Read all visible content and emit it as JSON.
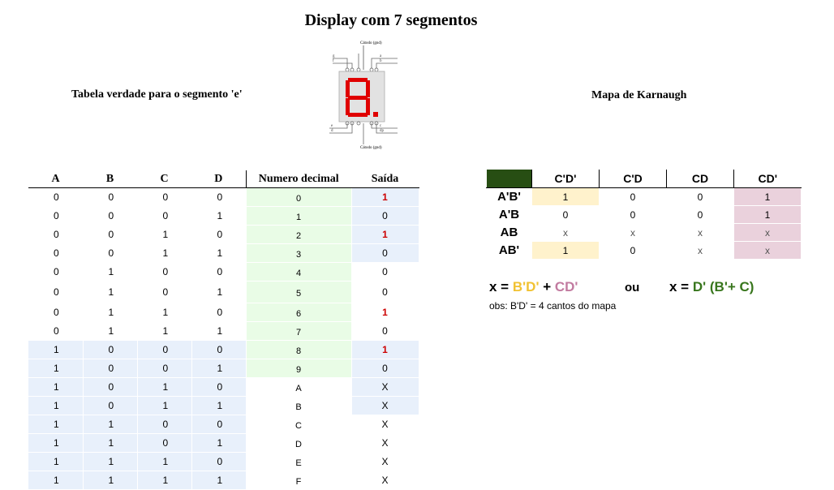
{
  "title": "Display com 7 segmentos",
  "truth_table_label": "Tabela verdade para o segmento 'e'",
  "karnaugh_label": "Mapa de Karnaugh",
  "diagram": {
    "common_top": "Cátodo (gnd)",
    "common_bottom": "Cátodo (gnd)",
    "segments": [
      "a",
      "b",
      "c",
      "d",
      "e",
      "f",
      "g"
    ],
    "dp": "dp",
    "accent_color": "#e00000"
  },
  "truth_table": {
    "headers": [
      "A",
      "B",
      "C",
      "D",
      "Numero decimal",
      "Saída"
    ],
    "rows": [
      {
        "a": "0",
        "b": "0",
        "c": "0",
        "d": "0",
        "num": "0",
        "out": "1"
      },
      {
        "a": "0",
        "b": "0",
        "c": "0",
        "d": "1",
        "num": "1",
        "out": "0"
      },
      {
        "a": "0",
        "b": "0",
        "c": "1",
        "d": "0",
        "num": "2",
        "out": "1"
      },
      {
        "a": "0",
        "b": "0",
        "c": "1",
        "d": "1",
        "num": "3",
        "out": "0"
      },
      {
        "a": "0",
        "b": "1",
        "c": "0",
        "d": "0",
        "num": "4",
        "out": "0"
      },
      {
        "a": "0",
        "b": "1",
        "c": "0",
        "d": "1",
        "num": "5",
        "out": "0"
      },
      {
        "a": "0",
        "b": "1",
        "c": "1",
        "d": "0",
        "num": "6",
        "out": "1"
      },
      {
        "a": "0",
        "b": "1",
        "c": "1",
        "d": "1",
        "num": "7",
        "out": "0"
      },
      {
        "a": "1",
        "b": "0",
        "c": "0",
        "d": "0",
        "num": "8",
        "out": "1"
      },
      {
        "a": "1",
        "b": "0",
        "c": "0",
        "d": "1",
        "num": "9",
        "out": "0"
      },
      {
        "a": "1",
        "b": "0",
        "c": "1",
        "d": "0",
        "num": "A",
        "out": "X"
      },
      {
        "a": "1",
        "b": "0",
        "c": "1",
        "d": "1",
        "num": "B",
        "out": "X"
      },
      {
        "a": "1",
        "b": "1",
        "c": "0",
        "d": "0",
        "num": "C",
        "out": "X"
      },
      {
        "a": "1",
        "b": "1",
        "c": "0",
        "d": "1",
        "num": "D",
        "out": "X"
      },
      {
        "a": "1",
        "b": "1",
        "c": "1",
        "d": "0",
        "num": "E",
        "out": "X"
      },
      {
        "a": "1",
        "b": "1",
        "c": "1",
        "d": "1",
        "num": "F",
        "out": "X"
      }
    ]
  },
  "karnaugh": {
    "col_headers": [
      "C'D'",
      "C'D",
      "CD",
      "CD'"
    ],
    "rows": [
      {
        "label": "A'B'",
        "cells": [
          "1",
          "0",
          "0",
          "1"
        ]
      },
      {
        "label": "A'B",
        "cells": [
          "0",
          "0",
          "0",
          "1"
        ]
      },
      {
        "label": "AB",
        "cells": [
          "x",
          "x",
          "x",
          "x"
        ]
      },
      {
        "label": "AB'",
        "cells": [
          "1",
          "0",
          "x",
          "x"
        ]
      }
    ]
  },
  "expression": {
    "lhs": "x = ",
    "term1": "B'D'",
    "plus": " + ",
    "term2": "CD'",
    "ou": "ou",
    "alt_lhs": "x = ",
    "alt_rhs": "D' (B'+ C)",
    "obs": "obs:  B'D' = 4 cantos do mapa"
  },
  "colors": {
    "highlight_one": "#cc0000",
    "truth_blue": "#e8f0fb",
    "truth_green": "#e9fce6",
    "kmap_yellow": "#fff2cc",
    "kmap_pink": "#ead1dc",
    "kmap_corner": "#274e13",
    "term_yellow": "#f1c232",
    "term_pink": "#c27ba0",
    "term_green": "#38761d"
  }
}
